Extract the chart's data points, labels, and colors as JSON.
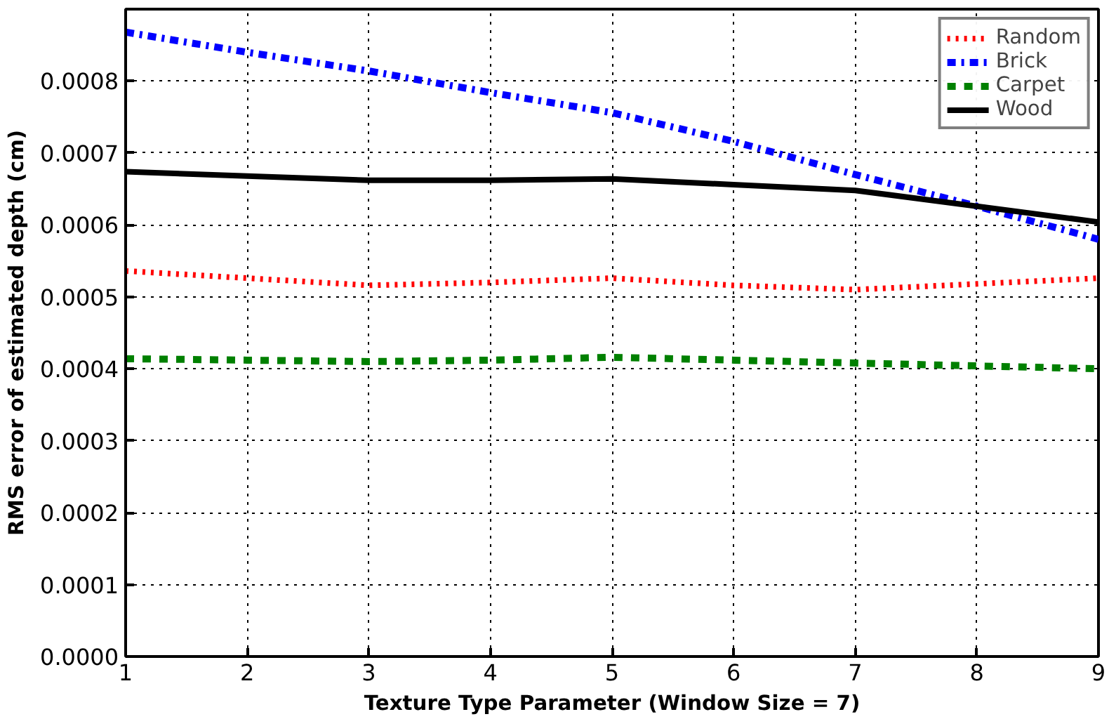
{
  "chart_data": {
    "type": "line",
    "xlabel": "Texture Type Parameter (Window Size = 7)",
    "ylabel": "RMS error of estimated depth (cm)",
    "x": [
      1,
      2,
      3,
      4,
      5,
      6,
      7,
      8,
      9
    ],
    "series": [
      {
        "name": "Random",
        "color": "#ff0000",
        "line_style": "dotted",
        "values": [
          0.000536,
          0.000526,
          0.000516,
          0.00052,
          0.000526,
          0.000516,
          0.00051,
          0.000518,
          0.000526
        ]
      },
      {
        "name": "Brick",
        "color": "#0000ff",
        "line_style": "dashdot",
        "values": [
          0.000868,
          0.00084,
          0.000814,
          0.000784,
          0.000756,
          0.000716,
          0.00067,
          0.000626,
          0.00058
        ]
      },
      {
        "name": "Carpet",
        "color": "#008000",
        "line_style": "dashed",
        "values": [
          0.000414,
          0.000412,
          0.00041,
          0.000412,
          0.000416,
          0.000412,
          0.000408,
          0.000404,
          0.0004
        ]
      },
      {
        "name": "Wood",
        "color": "#000000",
        "line_style": "solid",
        "values": [
          0.000674,
          0.000668,
          0.000662,
          0.000662,
          0.000664,
          0.000656,
          0.000648,
          0.000626,
          0.000604
        ]
      }
    ],
    "xlim": [
      1,
      9
    ],
    "ylim": [
      0,
      0.0009
    ],
    "xticks": [
      1,
      2,
      3,
      4,
      5,
      6,
      7,
      8,
      9
    ],
    "yticks": [
      {
        "value": 0,
        "label": "0.0000"
      },
      {
        "value": 0.0001,
        "label": "0.0001"
      },
      {
        "value": 0.0002,
        "label": "0.0002"
      },
      {
        "value": 0.0003,
        "label": "0.0003"
      },
      {
        "value": 0.0004,
        "label": "0.0004"
      },
      {
        "value": 0.0005,
        "label": "0.0005"
      },
      {
        "value": 0.0006,
        "label": "0.0006"
      },
      {
        "value": 0.0007,
        "label": "0.0007"
      },
      {
        "value": 0.0008,
        "label": "0.0008"
      }
    ],
    "grid": true,
    "legend": "top right",
    "marker": "none"
  }
}
